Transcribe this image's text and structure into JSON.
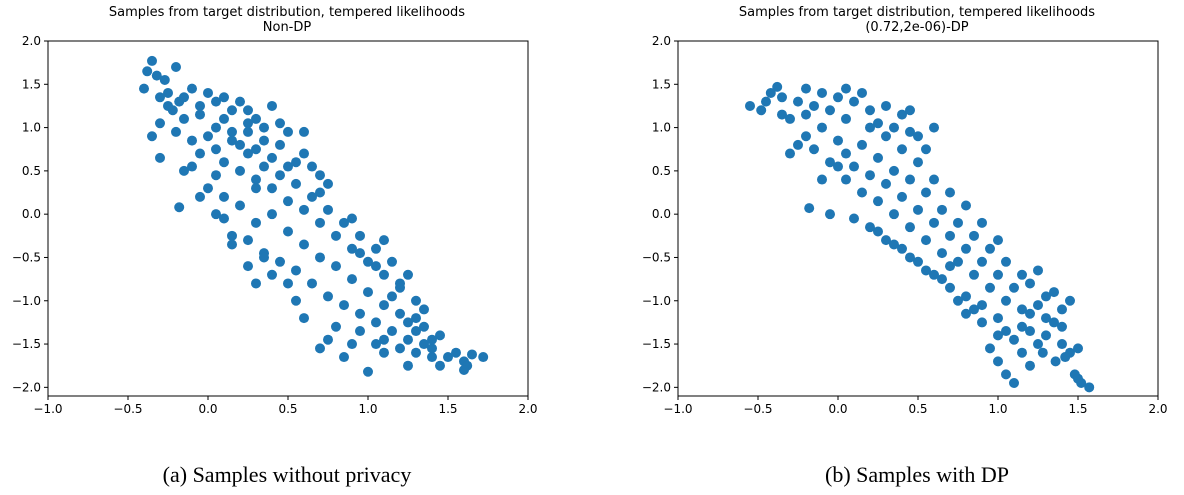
{
  "chart_data": [
    {
      "type": "scatter",
      "title": "Samples from target distribution, tempered likelihoods",
      "subtitle": "Non-DP",
      "caption": "(a)  Samples without privacy",
      "xlim": [
        -1.0,
        2.0
      ],
      "ylim": [
        -2.1,
        2.0
      ],
      "xticks": [
        -1.0,
        -0.5,
        0.0,
        0.5,
        1.0,
        1.5,
        2.0
      ],
      "xtick_labels": [
        "−1.0",
        "−0.5",
        "0.0",
        "0.5",
        "1.0",
        "1.5",
        "2.0"
      ],
      "yticks": [
        -2.0,
        -1.5,
        -1.0,
        -0.5,
        0.0,
        0.5,
        1.0,
        1.5,
        2.0
      ],
      "ytick_labels": [
        "−2.0",
        "−1.5",
        "−1.0",
        "−0.5",
        "0.0",
        "0.5",
        "1.0",
        "1.5",
        "2.0"
      ],
      "color": "#1f77b4",
      "points": [
        [
          -0.35,
          1.77
        ],
        [
          -0.38,
          1.65
        ],
        [
          -0.32,
          1.6
        ],
        [
          -0.27,
          1.55
        ],
        [
          -0.2,
          1.7
        ],
        [
          -0.4,
          1.45
        ],
        [
          -0.3,
          1.35
        ],
        [
          -0.25,
          1.4
        ],
        [
          -0.18,
          1.3
        ],
        [
          -0.1,
          1.45
        ],
        [
          -0.05,
          1.25
        ],
        [
          0.0,
          1.4
        ],
        [
          0.05,
          1.3
        ],
        [
          -0.22,
          1.2
        ],
        [
          -0.15,
          1.1
        ],
        [
          -0.3,
          1.05
        ],
        [
          -0.2,
          0.95
        ],
        [
          -0.35,
          0.9
        ],
        [
          0.1,
          1.35
        ],
        [
          0.2,
          1.3
        ],
        [
          0.25,
          1.2
        ],
        [
          0.3,
          1.1
        ],
        [
          0.35,
          1.0
        ],
        [
          0.45,
          1.05
        ],
        [
          0.5,
          0.95
        ],
        [
          -0.3,
          0.65
        ],
        [
          -0.15,
          0.5
        ],
        [
          -0.18,
          0.08
        ],
        [
          0.05,
          0.0
        ],
        [
          0.1,
          -0.05
        ],
        [
          -0.1,
          0.85
        ],
        [
          -0.05,
          0.7
        ],
        [
          0.0,
          0.9
        ],
        [
          0.05,
          0.75
        ],
        [
          0.1,
          0.6
        ],
        [
          0.15,
          0.85
        ],
        [
          0.2,
          0.5
        ],
        [
          0.25,
          0.7
        ],
        [
          0.3,
          0.4
        ],
        [
          0.35,
          0.55
        ],
        [
          0.4,
          0.3
        ],
        [
          0.45,
          0.45
        ],
        [
          0.5,
          0.15
        ],
        [
          0.55,
          0.35
        ],
        [
          0.6,
          0.05
        ],
        [
          0.65,
          0.2
        ],
        [
          0.7,
          -0.1
        ],
        [
          0.75,
          0.05
        ],
        [
          0.8,
          -0.25
        ],
        [
          0.85,
          -0.1
        ],
        [
          0.9,
          -0.4
        ],
        [
          0.95,
          -0.25
        ],
        [
          1.0,
          -0.55
        ],
        [
          1.05,
          -0.4
        ],
        [
          1.1,
          -0.7
        ],
        [
          1.15,
          -0.55
        ],
        [
          1.2,
          -0.85
        ],
        [
          1.25,
          -0.7
        ],
        [
          1.3,
          -1.0
        ],
        [
          1.35,
          -1.1
        ],
        [
          0.2,
          0.1
        ],
        [
          0.3,
          -0.1
        ],
        [
          0.4,
          0.0
        ],
        [
          0.5,
          -0.2
        ],
        [
          0.6,
          -0.35
        ],
        [
          0.7,
          -0.5
        ],
        [
          0.8,
          -0.6
        ],
        [
          0.9,
          -0.75
        ],
        [
          1.0,
          -0.9
        ],
        [
          1.1,
          -1.05
        ],
        [
          0.3,
          0.3
        ],
        [
          0.5,
          0.55
        ],
        [
          0.7,
          0.25
        ],
        [
          0.9,
          -0.05
        ],
        [
          1.1,
          -0.3
        ],
        [
          0.6,
          0.7
        ],
        [
          0.75,
          0.35
        ],
        [
          0.25,
          -0.3
        ],
        [
          0.15,
          -0.25
        ],
        [
          0.35,
          -0.45
        ],
        [
          0.45,
          -0.55
        ],
        [
          0.55,
          -0.65
        ],
        [
          0.65,
          -0.8
        ],
        [
          0.75,
          -0.95
        ],
        [
          0.85,
          -1.05
        ],
        [
          0.95,
          -1.15
        ],
        [
          1.05,
          -1.25
        ],
        [
          1.15,
          -1.35
        ],
        [
          1.25,
          -1.45
        ],
        [
          1.3,
          -1.6
        ],
        [
          1.35,
          -1.5
        ],
        [
          1.4,
          -1.55
        ],
        [
          1.45,
          -1.4
        ],
        [
          1.5,
          -1.65
        ],
        [
          1.55,
          -1.6
        ],
        [
          1.6,
          -1.7
        ],
        [
          1.62,
          -1.75
        ],
        [
          1.65,
          -1.62
        ],
        [
          1.72,
          -1.65
        ],
        [
          1.6,
          -1.8
        ],
        [
          1.45,
          -1.75
        ],
        [
          1.4,
          -1.65
        ],
        [
          1.25,
          -1.75
        ],
        [
          1.0,
          -1.82
        ],
        [
          0.9,
          -1.5
        ],
        [
          0.85,
          -1.65
        ],
        [
          0.7,
          -1.55
        ],
        [
          0.75,
          -1.45
        ],
        [
          0.6,
          -1.2
        ],
        [
          0.55,
          -1.0
        ],
        [
          0.5,
          -0.8
        ],
        [
          0.4,
          -0.7
        ],
        [
          0.35,
          -0.5
        ],
        [
          0.8,
          -1.3
        ],
        [
          1.2,
          -1.15
        ],
        [
          1.25,
          -1.25
        ],
        [
          1.3,
          -1.35
        ],
        [
          1.1,
          -1.45
        ],
        [
          0.95,
          -1.35
        ],
        [
          1.15,
          -0.95
        ],
        [
          1.2,
          -0.8
        ],
        [
          1.05,
          -0.6
        ],
        [
          0.95,
          -0.45
        ],
        [
          0.3,
          -0.8
        ],
        [
          0.25,
          -0.6
        ],
        [
          0.15,
          -0.35
        ],
        [
          0.7,
          0.45
        ],
        [
          0.65,
          0.55
        ],
        [
          0.55,
          0.6
        ],
        [
          0.45,
          0.8
        ],
        [
          0.6,
          0.95
        ],
        [
          0.4,
          1.25
        ],
        [
          0.0,
          0.3
        ],
        [
          -0.05,
          0.2
        ],
        [
          0.05,
          0.45
        ],
        [
          0.1,
          0.2
        ],
        [
          -0.1,
          0.55
        ],
        [
          0.05,
          1.0
        ],
        [
          0.1,
          1.1
        ],
        [
          0.15,
          0.95
        ],
        [
          0.2,
          0.8
        ],
        [
          0.25,
          0.95
        ],
        [
          0.3,
          0.75
        ],
        [
          0.35,
          0.85
        ],
        [
          -0.25,
          1.25
        ],
        [
          -0.15,
          1.35
        ],
        [
          -0.05,
          1.15
        ],
        [
          0.15,
          1.2
        ],
        [
          0.25,
          1.05
        ],
        [
          0.4,
          0.65
        ],
        [
          1.3,
          -1.2
        ],
        [
          1.35,
          -1.3
        ],
        [
          1.4,
          -1.45
        ],
        [
          1.2,
          -1.55
        ],
        [
          1.1,
          -1.6
        ],
        [
          1.05,
          -1.5
        ]
      ]
    },
    {
      "type": "scatter",
      "title": "Samples from target distribution, tempered likelihoods",
      "subtitle": "(0.72,2e-06)-DP",
      "caption": "(b)  Samples with DP",
      "xlim": [
        -1.0,
        2.0
      ],
      "ylim": [
        -2.1,
        2.0
      ],
      "xticks": [
        -1.0,
        -0.5,
        0.0,
        0.5,
        1.0,
        1.5,
        2.0
      ],
      "xtick_labels": [
        "−1.0",
        "−0.5",
        "0.0",
        "0.5",
        "1.0",
        "1.5",
        "2.0"
      ],
      "yticks": [
        -2.0,
        -1.5,
        -1.0,
        -0.5,
        0.0,
        0.5,
        1.0,
        1.5,
        2.0
      ],
      "ytick_labels": [
        "−2.0",
        "−1.5",
        "−1.0",
        "−0.5",
        "0.0",
        "0.5",
        "1.0",
        "1.5",
        "2.0"
      ],
      "color": "#1f77b4",
      "points": [
        [
          -0.55,
          1.25
        ],
        [
          -0.48,
          1.2
        ],
        [
          -0.42,
          1.4
        ],
        [
          -0.38,
          1.47
        ],
        [
          -0.35,
          1.35
        ],
        [
          -0.3,
          1.1
        ],
        [
          -0.25,
          1.3
        ],
        [
          -0.2,
          1.45
        ],
        [
          -0.15,
          1.25
        ],
        [
          -0.1,
          1.4
        ],
        [
          -0.05,
          1.2
        ],
        [
          0.0,
          1.35
        ],
        [
          0.05,
          1.45
        ],
        [
          0.1,
          1.3
        ],
        [
          0.15,
          1.4
        ],
        [
          0.2,
          1.2
        ],
        [
          0.25,
          1.05
        ],
        [
          0.3,
          1.25
        ],
        [
          0.35,
          1.0
        ],
        [
          0.4,
          1.15
        ],
        [
          0.45,
          0.95
        ],
        [
          0.5,
          0.9
        ],
        [
          -0.3,
          0.7
        ],
        [
          -0.25,
          0.8
        ],
        [
          -0.2,
          0.9
        ],
        [
          -0.15,
          0.75
        ],
        [
          -0.1,
          1.0
        ],
        [
          -0.05,
          0.6
        ],
        [
          0.0,
          0.85
        ],
        [
          0.05,
          0.7
        ],
        [
          0.1,
          0.55
        ],
        [
          0.15,
          0.8
        ],
        [
          0.2,
          0.45
        ],
        [
          0.25,
          0.65
        ],
        [
          0.3,
          0.35
        ],
        [
          0.35,
          0.5
        ],
        [
          0.4,
          0.2
        ],
        [
          0.45,
          0.4
        ],
        [
          0.5,
          0.05
        ],
        [
          0.55,
          0.25
        ],
        [
          0.6,
          -0.1
        ],
        [
          0.65,
          0.05
        ],
        [
          0.7,
          -0.25
        ],
        [
          0.75,
          -0.1
        ],
        [
          0.8,
          -0.4
        ],
        [
          0.85,
          -0.25
        ],
        [
          0.9,
          -0.55
        ],
        [
          0.95,
          -0.4
        ],
        [
          1.0,
          -0.7
        ],
        [
          1.05,
          -0.55
        ],
        [
          1.1,
          -0.85
        ],
        [
          1.15,
          -0.7
        ],
        [
          1.2,
          -0.8
        ],
        [
          1.25,
          -0.65
        ],
        [
          1.3,
          -0.95
        ],
        [
          1.35,
          -0.9
        ],
        [
          1.4,
          -1.1
        ],
        [
          1.45,
          -1.0
        ],
        [
          -0.18,
          0.07
        ],
        [
          -0.05,
          0.0
        ],
        [
          0.1,
          -0.05
        ],
        [
          0.2,
          -0.15
        ],
        [
          0.3,
          -0.3
        ],
        [
          0.4,
          -0.4
        ],
        [
          0.5,
          -0.55
        ],
        [
          0.6,
          -0.7
        ],
        [
          0.7,
          -0.85
        ],
        [
          0.8,
          -0.95
        ],
        [
          0.9,
          -1.05
        ],
        [
          1.0,
          -1.2
        ],
        [
          1.05,
          -1.35
        ],
        [
          1.1,
          -1.45
        ],
        [
          1.15,
          -1.3
        ],
        [
          1.2,
          -1.15
        ],
        [
          0.95,
          -1.55
        ],
        [
          1.0,
          -1.7
        ],
        [
          1.05,
          -1.85
        ],
        [
          1.1,
          -1.95
        ],
        [
          1.15,
          -1.6
        ],
        [
          1.2,
          -1.75
        ],
        [
          1.25,
          -1.5
        ],
        [
          1.3,
          -1.4
        ],
        [
          1.35,
          -1.25
        ],
        [
          1.4,
          -1.5
        ],
        [
          1.45,
          -1.6
        ],
        [
          1.5,
          -1.55
        ],
        [
          1.48,
          -1.85
        ],
        [
          1.52,
          -1.95
        ],
        [
          1.5,
          -1.9
        ],
        [
          1.57,
          -2.0
        ],
        [
          1.4,
          -1.3
        ],
        [
          1.3,
          -1.2
        ],
        [
          1.25,
          -1.05
        ],
        [
          0.85,
          -1.1
        ],
        [
          0.75,
          -1.0
        ],
        [
          0.7,
          -0.6
        ],
        [
          0.65,
          -0.45
        ],
        [
          0.55,
          -0.3
        ],
        [
          0.45,
          -0.15
        ],
        [
          0.35,
          0.0
        ],
        [
          0.25,
          0.15
        ],
        [
          0.15,
          0.25
        ],
        [
          0.05,
          0.4
        ],
        [
          0.0,
          0.55
        ],
        [
          0.5,
          0.6
        ],
        [
          0.6,
          0.4
        ],
        [
          0.7,
          0.25
        ],
        [
          0.8,
          0.1
        ],
        [
          0.9,
          -0.1
        ],
        [
          1.0,
          -0.3
        ],
        [
          0.55,
          0.75
        ],
        [
          0.3,
          0.9
        ],
        [
          0.4,
          0.75
        ],
        [
          0.2,
          1.0
        ],
        [
          -0.35,
          1.15
        ],
        [
          -0.45,
          1.3
        ],
        [
          -0.1,
          0.4
        ],
        [
          0.25,
          -0.2
        ],
        [
          0.35,
          -0.35
        ],
        [
          0.45,
          -0.5
        ],
        [
          0.55,
          -0.65
        ],
        [
          0.65,
          -0.75
        ],
        [
          0.75,
          -0.55
        ],
        [
          0.85,
          -0.7
        ],
        [
          0.95,
          -0.85
        ],
        [
          1.05,
          -1.0
        ],
        [
          1.15,
          -1.1
        ],
        [
          0.9,
          -1.25
        ],
        [
          0.8,
          -1.15
        ],
        [
          1.0,
          -1.4
        ],
        [
          1.2,
          -1.35
        ],
        [
          1.28,
          -1.6
        ],
        [
          1.36,
          -1.7
        ],
        [
          1.42,
          -1.65
        ],
        [
          0.6,
          1.0
        ],
        [
          0.45,
          1.2
        ],
        [
          -0.2,
          1.15
        ],
        [
          0.05,
          1.1
        ]
      ]
    }
  ]
}
